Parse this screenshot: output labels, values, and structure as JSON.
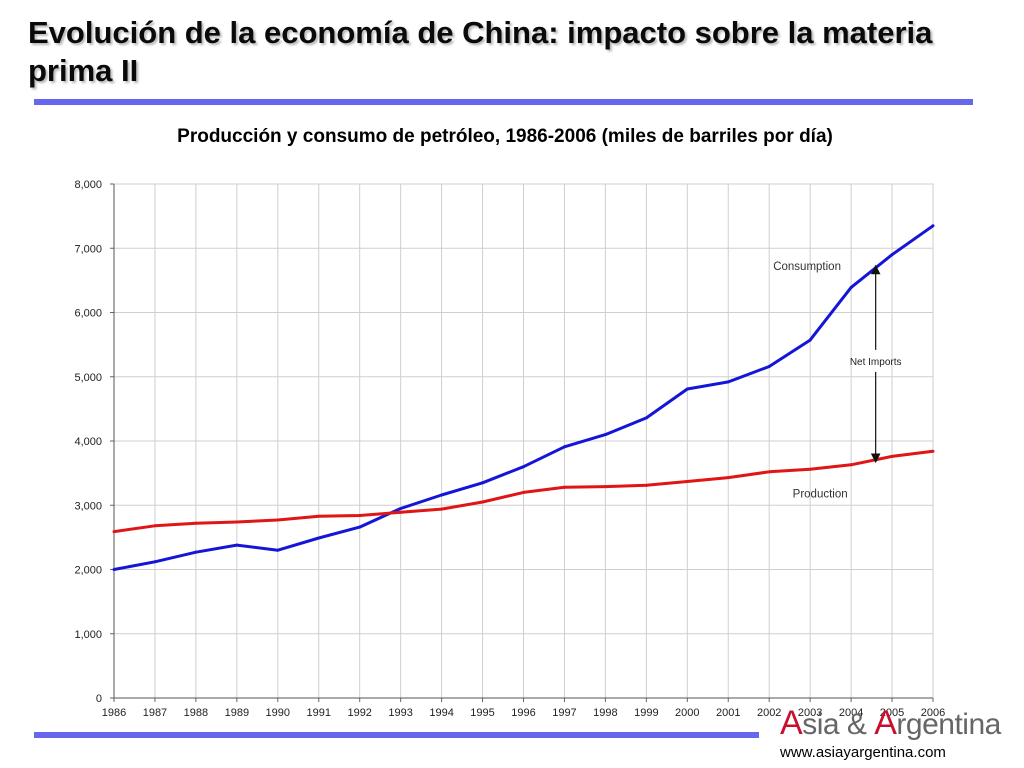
{
  "slide": {
    "title": "Evolución de la economía de China: impacto sobre la materia prima II",
    "subtitle": "Producción y consumo de petróleo, 1986-2006 (miles de barriles por día)",
    "logo_text": "Asia & Argentina",
    "logo_cap_a": "A",
    "logo_rest_a": "sia & ",
    "logo_cap_b": "A",
    "logo_rest_b": "rgentina",
    "website": "www.asiayargentina.com"
  },
  "colors": {
    "consumption": "#1515d8",
    "production": "#e01515",
    "accent_rule": "#6666ee",
    "logo_accent": "#c8102e"
  },
  "chart_data": {
    "type": "line",
    "x": [
      1986,
      1987,
      1988,
      1989,
      1990,
      1991,
      1992,
      1993,
      1994,
      1995,
      1996,
      1997,
      1998,
      1999,
      2000,
      2001,
      2002,
      2003,
      2004,
      2005,
      2006
    ],
    "x_tick_labels": [
      "1986",
      "1987",
      "1988",
      "1989",
      "1990",
      "1991",
      "1992",
      "1993",
      "1994",
      "1995",
      "1996",
      "1997",
      "1998",
      "1999",
      "2000",
      "2001",
      "2002",
      "2003",
      "2004",
      "2005",
      "2006"
    ],
    "y_ticks": [
      0,
      1000,
      2000,
      3000,
      4000,
      5000,
      6000,
      7000,
      8000
    ],
    "y_tick_labels": [
      "0",
      "1,000",
      "2,000",
      "3,000",
      "4,000",
      "5,000",
      "6,000",
      "7,000",
      "8,000"
    ],
    "ylim": [
      0,
      8000
    ],
    "grid": true,
    "series": [
      {
        "name": "Consumption",
        "color": "#1515d8",
        "values": [
          2000,
          2120,
          2270,
          2380,
          2300,
          2490,
          2660,
          2950,
          3160,
          3350,
          3600,
          3910,
          4100,
          4360,
          4810,
          4920,
          5160,
          5570,
          6390,
          6900,
          7350
        ]
      },
      {
        "name": "Production",
        "color": "#e01515",
        "values": [
          2590,
          2680,
          2720,
          2740,
          2770,
          2830,
          2840,
          2890,
          2940,
          3050,
          3200,
          3280,
          3290,
          3310,
          3370,
          3430,
          3520,
          3560,
          3630,
          3760,
          3840
        ]
      }
    ],
    "annotation": {
      "label": "Net Imports",
      "x_year": 2004.6,
      "from": 6670,
      "to": 3730
    }
  }
}
